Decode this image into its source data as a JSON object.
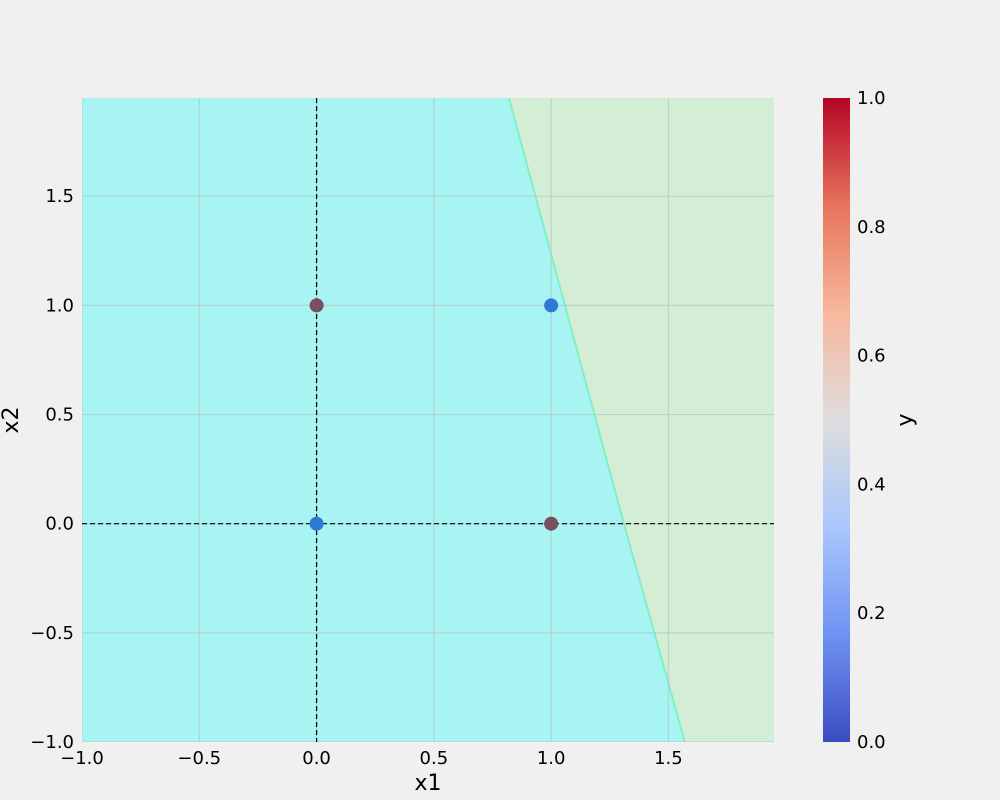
{
  "chart_data": {
    "type": "scatter",
    "title": "",
    "xlabel": "x1",
    "ylabel": "x2",
    "xlim": [
      -1.0,
      1.95
    ],
    "ylim": [
      -1.0,
      1.95
    ],
    "x_ticks": [
      -1.0,
      -0.5,
      0.0,
      0.5,
      1.0,
      1.5
    ],
    "x_tick_labels": [
      "−1.0",
      "−0.5",
      "0.0",
      "0.5",
      "1.0",
      "1.5"
    ],
    "y_ticks": [
      -1.0,
      -0.5,
      0.0,
      0.5,
      1.0,
      1.5
    ],
    "y_tick_labels": [
      "−1.0",
      "−0.5",
      "0.0",
      "0.5",
      "1.0",
      "1.5"
    ],
    "grid": true,
    "reference_lines": {
      "x": 0.0,
      "y": 0.0,
      "style": "dashed",
      "color": "#000000"
    },
    "decision_regions": {
      "boundary": [
        {
          "x": 0.82,
          "y": 1.95
        },
        {
          "x": 1.31,
          "y": 0.0
        },
        {
          "x": 1.57,
          "y": -1.0
        }
      ],
      "left_region_color": "#a8f4f2",
      "right_region_color": "#d3eed5",
      "boundary_color": "#7ff0c8"
    },
    "points": [
      {
        "x": 0.0,
        "y": 0.0,
        "label": 0,
        "color": "#2f7ad4"
      },
      {
        "x": 0.0,
        "y": 1.0,
        "label": 1,
        "color": "#7a4e5e"
      },
      {
        "x": 1.0,
        "y": 0.0,
        "label": 1,
        "color": "#7a4e5e"
      },
      {
        "x": 1.0,
        "y": 1.0,
        "label": 0,
        "color": "#2f7ad4"
      }
    ],
    "colorbar": {
      "label": "y",
      "range": [
        0.0,
        1.0
      ],
      "ticks": [
        0.0,
        0.2,
        0.4,
        0.6,
        0.8,
        1.0
      ],
      "tick_labels": [
        "0.0",
        "0.2",
        "0.4",
        "0.6",
        "0.8",
        "1.0"
      ],
      "colormap": "coolwarm",
      "stops": [
        "#3b4cc0",
        "#6f92f3",
        "#aac7fd",
        "#dddddd",
        "#f7b89c",
        "#e7745b",
        "#b40426"
      ]
    }
  }
}
